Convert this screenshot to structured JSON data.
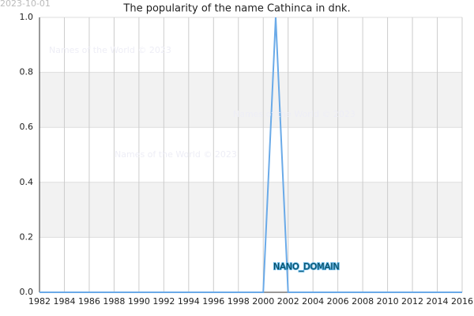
{
  "date_stamp": "2023-10-01",
  "watermarks": [
    "Names of the World © 2023",
    "Names of the World © 2023",
    "Names of the World © 2023"
  ],
  "domain_label": "NANO_DOMAIN",
  "chart_data": {
    "type": "line",
    "title": "The popularity of the name Cathinca in dnk.",
    "x": [
      1982,
      1983,
      1984,
      1985,
      1986,
      1987,
      1988,
      1989,
      1990,
      1991,
      1992,
      1993,
      1994,
      1995,
      1996,
      1997,
      1998,
      1999,
      2000,
      2001,
      2002,
      2003,
      2004,
      2005,
      2006,
      2007,
      2008,
      2009,
      2010,
      2011,
      2012,
      2013,
      2014,
      2015,
      2016
    ],
    "series": [
      {
        "name": "Cathinca",
        "color": "#6aaae8",
        "values": [
          0,
          0,
          0,
          0,
          0,
          0,
          0,
          0,
          0,
          0,
          0,
          0,
          0,
          0,
          0,
          0,
          0,
          0,
          0,
          1,
          0,
          0,
          0,
          0,
          0,
          0,
          0,
          0,
          0,
          0,
          0,
          0,
          0,
          0,
          0
        ]
      }
    ],
    "xlim": [
      1982,
      2016
    ],
    "xticks": [
      1982,
      1984,
      1986,
      1988,
      1990,
      1992,
      1994,
      1996,
      1998,
      2000,
      2002,
      2004,
      2006,
      2008,
      2010,
      2012,
      2014,
      2016
    ],
    "ylim": [
      0,
      1
    ],
    "yticks": [
      {
        "value": 0,
        "label": "0.0"
      },
      0.2,
      0.4,
      0.6,
      0.8,
      {
        "value": 1,
        "label": "1.0"
      }
    ],
    "grid": true
  }
}
